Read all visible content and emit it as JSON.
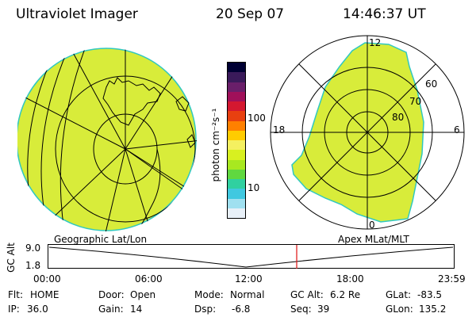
{
  "header": {
    "title": "Ultraviolet Imager",
    "date": "20 Sep 07",
    "time": "14:46:37 UT"
  },
  "geo_map": {
    "label": "Geographic Lat/Lon"
  },
  "polar_map": {
    "label": "Apex MLat/MLT",
    "mlt_labels": {
      "top": "12",
      "left": "18",
      "right": "6",
      "bottom": "0"
    },
    "lat_labels": [
      "60",
      "70",
      "80"
    ]
  },
  "colorbar": {
    "unit_label": "photon cm⁻²s⁻¹",
    "ticks": [
      "100",
      "10"
    ],
    "colors": [
      "#000033",
      "#3a1a5a",
      "#6a1f6a",
      "#a0105a",
      "#d41830",
      "#e84010",
      "#ff8000",
      "#ffcc00",
      "#f4f060",
      "#d8f020",
      "#a8e820",
      "#60d840",
      "#30d0a0",
      "#40c8e0",
      "#a0e0f0",
      "#e8f0f8"
    ]
  },
  "altitude_plot": {
    "y_label": "GC Alt",
    "y_ticks": [
      "9.0",
      "1.8"
    ],
    "x_ticks": [
      "00:00",
      "06:00",
      "12:00",
      "18:00",
      "23:59"
    ],
    "marker_time": "14:46:37",
    "marker_color": "#e01010"
  },
  "status": {
    "row1": {
      "flt_label": "Flt:",
      "flt_value": "HOME",
      "door_label": "Door:",
      "door_value": "Open",
      "mode_label": "Mode:",
      "mode_value": "Normal",
      "gcalt_label": "GC Alt:",
      "gcalt_value": "6.2 Re",
      "glat_label": "GLat:",
      "glat_value": "-83.5"
    },
    "row2": {
      "ip_label": "IP:",
      "ip_value": "36.0",
      "gain_label": "Gain:",
      "gain_value": "14",
      "dsp_label": "Dsp:",
      "dsp_value": "-6.8",
      "seq_label": "Seq:",
      "seq_value": "39",
      "glon_label": "GLon:",
      "glon_value": "135.2"
    }
  },
  "colors": {
    "aurora_fill": "#d8ec3a",
    "aurora_edge": "#30c8c0"
  }
}
